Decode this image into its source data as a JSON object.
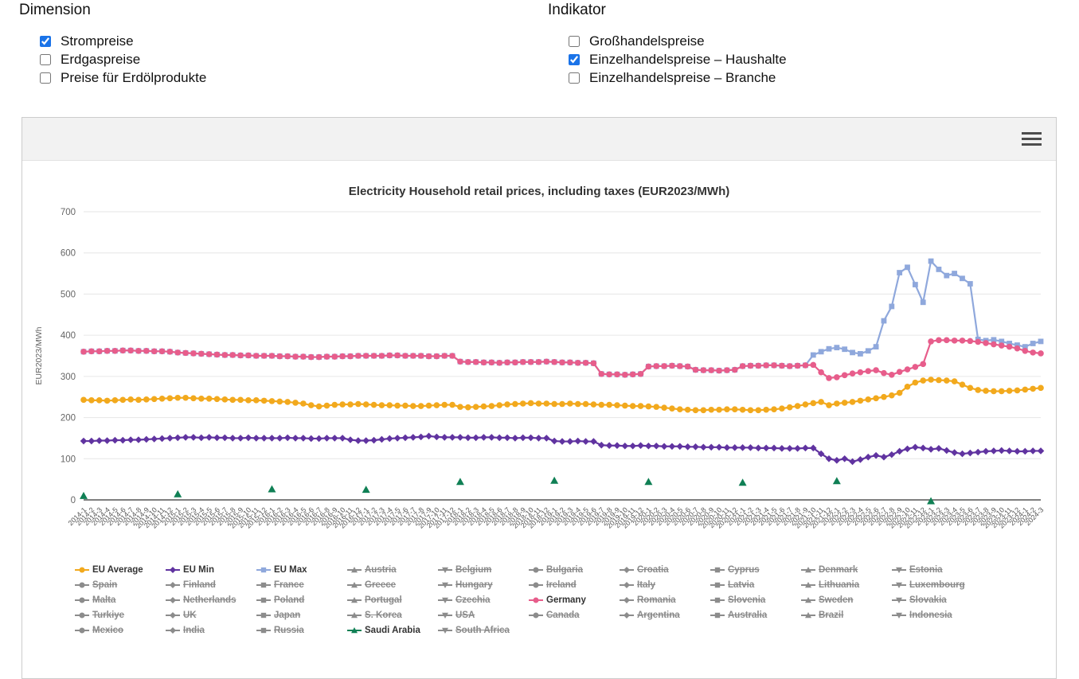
{
  "filters": {
    "dimension": {
      "title": "Dimension",
      "options": [
        {
          "label": "Strompreise",
          "checked": true
        },
        {
          "label": "Erdgaspreise",
          "checked": false
        },
        {
          "label": "Preise für Erdölprodukte",
          "checked": false
        }
      ]
    },
    "indikator": {
      "title": "Indikator",
      "options": [
        {
          "label": "Großhandelspreise",
          "checked": false
        },
        {
          "label": "Einzelhandelspreise – Haushalte",
          "checked": true
        },
        {
          "label": "Einzelhandelspreise – Branche",
          "checked": false
        }
      ]
    }
  },
  "card": {
    "menu_icon": "hamburger-icon"
  },
  "chart_data": {
    "type": "line",
    "title": "Electricity Household retail prices, including taxes (EUR2023/MWh)",
    "ylabel": "EUR2023/MWh",
    "xlabel": "",
    "ylim": [
      0,
      700
    ],
    "yticks": [
      0,
      100,
      200,
      300,
      400,
      500,
      600,
      700
    ],
    "grid": true,
    "legend_position": "bottom",
    "colors": {
      "eu_average": "#F2A91D",
      "eu_min": "#6033A0",
      "eu_max": "#8FA8DC",
      "germany": "#E75D8B",
      "saudi_arabia": "#108055",
      "inactive_legend": "#8C8C8C",
      "gridline": "#E6E6E6",
      "axis_line": "#333333",
      "checkbox_accent": "#1A73E8"
    },
    "x": [
      "2014-1",
      "2014-2",
      "2014-3",
      "2014-4",
      "2014-5",
      "2014-6",
      "2014-7",
      "2014-8",
      "2014-9",
      "2014-10",
      "2014-11",
      "2014-12",
      "2015-1",
      "2015-2",
      "2015-3",
      "2015-4",
      "2015-5",
      "2015-6",
      "2015-7",
      "2015-8",
      "2015-9",
      "2015-10",
      "2015-11",
      "2015-12",
      "2016-1",
      "2016-2",
      "2016-3",
      "2016-4",
      "2016-5",
      "2016-6",
      "2016-7",
      "2016-8",
      "2016-9",
      "2016-10",
      "2016-11",
      "2016-12",
      "2017-1",
      "2017-2",
      "2017-3",
      "2017-4",
      "2017-5",
      "2017-6",
      "2017-7",
      "2017-8",
      "2017-9",
      "2017-10",
      "2017-11",
      "2017-12",
      "2018-1",
      "2018-2",
      "2018-3",
      "2018-4",
      "2018-5",
      "2018-6",
      "2018-7",
      "2018-8",
      "2018-9",
      "2018-10",
      "2018-11",
      "2018-12",
      "2019-1",
      "2019-2",
      "2019-3",
      "2019-4",
      "2019-5",
      "2019-6",
      "2019-7",
      "2019-8",
      "2019-9",
      "2019-10",
      "2019-11",
      "2019-12",
      "2020-1",
      "2020-2",
      "2020-3",
      "2020-4",
      "2020-5",
      "2020-6",
      "2020-7",
      "2020-8",
      "2020-9",
      "2020-10",
      "2020-11",
      "2020-12",
      "2021-1",
      "2021-2",
      "2021-3",
      "2021-4",
      "2021-5",
      "2021-6",
      "2021-7",
      "2021-8",
      "2021-9",
      "2021-10",
      "2021-11",
      "2021-12",
      "2022-1",
      "2022-2",
      "2022-3",
      "2022-4",
      "2022-5",
      "2022-6",
      "2022-7",
      "2022-8",
      "2022-9",
      "2022-10",
      "2022-11",
      "2022-12",
      "2023-1",
      "2023-2",
      "2023-3",
      "2023-4",
      "2023-5",
      "2023-6",
      "2023-7",
      "2023-8",
      "2023-9",
      "2023-10",
      "2023-11",
      "2023-12",
      "2024-1",
      "2024-2",
      "2024-3"
    ],
    "series": [
      {
        "name": "EU Max",
        "color": "#8FA8DC",
        "marker": "square",
        "values": [
          360,
          361,
          361,
          362,
          362,
          363,
          363,
          362,
          362,
          361,
          361,
          360,
          358,
          357,
          356,
          355,
          354,
          353,
          352,
          352,
          351,
          351,
          350,
          350,
          350,
          349,
          349,
          348,
          348,
          347,
          347,
          348,
          348,
          349,
          349,
          350,
          350,
          350,
          350,
          351,
          351,
          350,
          350,
          350,
          349,
          349,
          350,
          350,
          336,
          335,
          335,
          334,
          334,
          333,
          334,
          334,
          335,
          335,
          335,
          336,
          335,
          334,
          334,
          333,
          333,
          332,
          306,
          305,
          305,
          304,
          305,
          306,
          324,
          325,
          325,
          326,
          325,
          324,
          316,
          315,
          315,
          314,
          315,
          316,
          325,
          326,
          326,
          327,
          327,
          326,
          325,
          326,
          327,
          352,
          360,
          367,
          370,
          366,
          358,
          355,
          362,
          372,
          435,
          470,
          552,
          565,
          523,
          480,
          580,
          560,
          545,
          550,
          538,
          525,
          390,
          387,
          389,
          385,
          380,
          376,
          372,
          380,
          385
        ]
      },
      {
        "name": "Germany",
        "color": "#E75D8B",
        "marker": "circle",
        "values": [
          360,
          361,
          361,
          362,
          362,
          363,
          363,
          362,
          362,
          361,
          361,
          360,
          358,
          357,
          356,
          355,
          354,
          353,
          352,
          352,
          351,
          351,
          350,
          350,
          350,
          349,
          349,
          348,
          348,
          347,
          347,
          348,
          348,
          349,
          349,
          350,
          350,
          350,
          350,
          351,
          351,
          350,
          350,
          350,
          349,
          349,
          350,
          350,
          336,
          335,
          335,
          334,
          334,
          333,
          334,
          334,
          335,
          335,
          335,
          336,
          335,
          334,
          334,
          333,
          333,
          332,
          306,
          305,
          305,
          304,
          305,
          306,
          324,
          325,
          325,
          326,
          325,
          324,
          316,
          315,
          315,
          314,
          315,
          316,
          325,
          326,
          326,
          327,
          327,
          326,
          325,
          326,
          327,
          328,
          310,
          296,
          298,
          303,
          307,
          310,
          313,
          315,
          308,
          304,
          311,
          317,
          323,
          330,
          385,
          388,
          388,
          387,
          387,
          386,
          384,
          381,
          378,
          375,
          372,
          368,
          362,
          358,
          356
        ]
      },
      {
        "name": "EU Average",
        "color": "#F2A91D",
        "marker": "circle",
        "values": [
          243,
          242,
          242,
          241,
          242,
          243,
          244,
          243,
          244,
          245,
          246,
          247,
          248,
          248,
          247,
          246,
          246,
          245,
          244,
          243,
          243,
          242,
          242,
          241,
          240,
          239,
          238,
          236,
          234,
          230,
          227,
          229,
          231,
          232,
          232,
          233,
          232,
          231,
          230,
          230,
          229,
          229,
          228,
          228,
          229,
          230,
          231,
          231,
          226,
          225,
          226,
          227,
          228,
          230,
          232,
          233,
          234,
          235,
          234,
          234,
          233,
          233,
          234,
          233,
          233,
          232,
          231,
          231,
          230,
          229,
          228,
          228,
          227,
          226,
          224,
          222,
          220,
          219,
          218,
          218,
          219,
          219,
          220,
          220,
          219,
          218,
          218,
          219,
          220,
          222,
          225,
          228,
          232,
          235,
          238,
          230,
          234,
          236,
          238,
          241,
          244,
          247,
          250,
          254,
          260,
          275,
          285,
          290,
          292,
          291,
          290,
          288,
          280,
          272,
          267,
          265,
          264,
          264,
          265,
          266,
          268,
          270,
          272
        ]
      },
      {
        "name": "EU Min",
        "color": "#6033A0",
        "marker": "diamond",
        "values": [
          143,
          143,
          144,
          144,
          145,
          145,
          146,
          146,
          147,
          148,
          149,
          150,
          151,
          152,
          152,
          151,
          152,
          151,
          151,
          150,
          150,
          151,
          150,
          150,
          150,
          150,
          151,
          150,
          150,
          149,
          149,
          150,
          150,
          150,
          146,
          144,
          144,
          145,
          147,
          149,
          150,
          151,
          152,
          153,
          155,
          153,
          152,
          152,
          152,
          151,
          151,
          152,
          152,
          151,
          151,
          150,
          151,
          151,
          150,
          150,
          143,
          142,
          142,
          143,
          142,
          142,
          133,
          132,
          132,
          131,
          131,
          132,
          131,
          131,
          130,
          130,
          130,
          129,
          129,
          128,
          128,
          128,
          127,
          127,
          127,
          127,
          126,
          126,
          126,
          125,
          125,
          125,
          126,
          126,
          112,
          100,
          96,
          100,
          93,
          98,
          104,
          108,
          104,
          110,
          118,
          124,
          128,
          126,
          123,
          125,
          120,
          115,
          112,
          114,
          116,
          118,
          119,
          120,
          119,
          118,
          118,
          119,
          119
        ]
      },
      {
        "name": "Saudi Arabia",
        "color": "#108055",
        "marker": "triangle",
        "line": false,
        "points": [
          {
            "x": "2014-1",
            "y": 10
          },
          {
            "x": "2015-1",
            "y": 14
          },
          {
            "x": "2016-1",
            "y": 26
          },
          {
            "x": "2017-1",
            "y": 25
          },
          {
            "x": "2018-1",
            "y": 44
          },
          {
            "x": "2019-1",
            "y": 47
          },
          {
            "x": "2020-1",
            "y": 44
          },
          {
            "x": "2021-1",
            "y": 42
          },
          {
            "x": "2022-1",
            "y": 46
          },
          {
            "x": "2023-1",
            "y": -3
          }
        ]
      }
    ],
    "legend": {
      "items": [
        {
          "label": "EU Average",
          "active": true
        },
        {
          "label": "EU Min",
          "active": true
        },
        {
          "label": "EU Max",
          "active": true
        },
        {
          "label": "Austria",
          "active": false
        },
        {
          "label": "Belgium",
          "active": false
        },
        {
          "label": "Bulgaria",
          "active": false
        },
        {
          "label": "Croatia",
          "active": false
        },
        {
          "label": "Cyprus",
          "active": false
        },
        {
          "label": "Denmark",
          "active": false
        },
        {
          "label": "Estonia",
          "active": false
        },
        {
          "label": "Spain",
          "active": false
        },
        {
          "label": "Finland",
          "active": false
        },
        {
          "label": "France",
          "active": false
        },
        {
          "label": "Greece",
          "active": false
        },
        {
          "label": "Hungary",
          "active": false
        },
        {
          "label": "Ireland",
          "active": false
        },
        {
          "label": "Italy",
          "active": false
        },
        {
          "label": "Latvia",
          "active": false
        },
        {
          "label": "Lithuania",
          "active": false
        },
        {
          "label": "Luxembourg",
          "active": false
        },
        {
          "label": "Malta",
          "active": false
        },
        {
          "label": "Netherlands",
          "active": false
        },
        {
          "label": "Poland",
          "active": false
        },
        {
          "label": "Portugal",
          "active": false
        },
        {
          "label": "Czechia",
          "active": false
        },
        {
          "label": "Germany",
          "active": true
        },
        {
          "label": "Romania",
          "active": false
        },
        {
          "label": "Slovenia",
          "active": false
        },
        {
          "label": "Sweden",
          "active": false
        },
        {
          "label": "Slovakia",
          "active": false
        },
        {
          "label": "Turkiye",
          "active": false
        },
        {
          "label": "UK",
          "active": false
        },
        {
          "label": "Japan",
          "active": false
        },
        {
          "label": "S. Korea",
          "active": false
        },
        {
          "label": "USA",
          "active": false
        },
        {
          "label": "Canada",
          "active": false
        },
        {
          "label": "Argentina",
          "active": false
        },
        {
          "label": "Australia",
          "active": false
        },
        {
          "label": "Brazil",
          "active": false
        },
        {
          "label": "Indonesia",
          "active": false
        },
        {
          "label": "Mexico",
          "active": false
        },
        {
          "label": "India",
          "active": false
        },
        {
          "label": "Russia",
          "active": false
        },
        {
          "label": "Saudi Arabia",
          "active": true
        },
        {
          "label": "South Africa",
          "active": false
        }
      ]
    }
  }
}
